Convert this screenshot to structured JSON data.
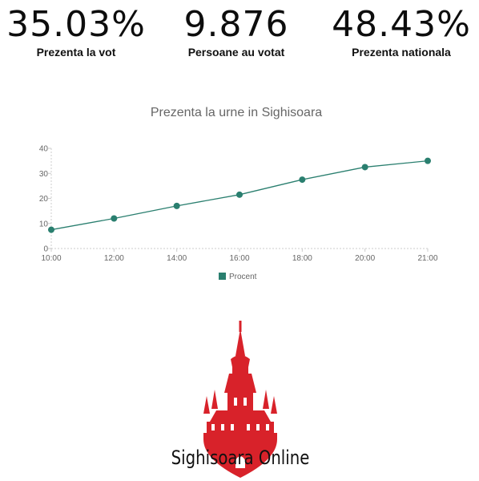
{
  "stats": [
    {
      "value": "35.03%",
      "label": "Prezenta la vot"
    },
    {
      "value": "9.876",
      "label": "Persoane au votat"
    },
    {
      "value": "48.43%",
      "label": "Prezenta nationala"
    }
  ],
  "colors": {
    "series": "#2a7f6f",
    "axis": "#cccccc",
    "logo_red": "#d8222a"
  },
  "chart_data": {
    "type": "line",
    "title": "Prezenta la urne in Sighisoara",
    "x": [
      "10:00",
      "12:00",
      "14:00",
      "16:00",
      "18:00",
      "20:00",
      "21:00"
    ],
    "series": [
      {
        "name": "Procent",
        "values": [
          7.5,
          12,
          17,
          21.5,
          27.5,
          32.5,
          35
        ]
      }
    ],
    "xlabel": "",
    "ylabel": "",
    "ylim": [
      0,
      40
    ],
    "yticks": [
      0,
      10,
      20,
      30,
      40
    ],
    "grid": false,
    "legend": "bottom"
  },
  "logo": {
    "icon": "citadel-tower-icon",
    "text": "Sighisoara Online"
  }
}
